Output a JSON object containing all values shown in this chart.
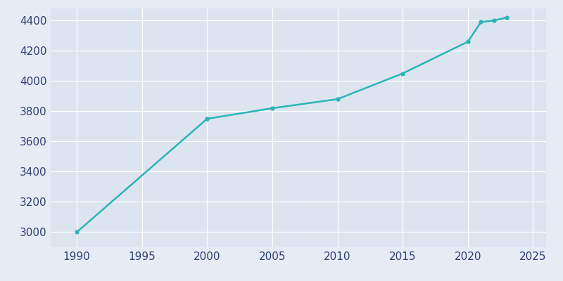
{
  "years": [
    1990,
    2000,
    2005,
    2010,
    2015,
    2020,
    2021,
    2022,
    2023
  ],
  "population": [
    3000,
    3750,
    3820,
    3880,
    4050,
    4260,
    4390,
    4400,
    4420
  ],
  "line_color": "#2ab5b5",
  "marker": "o",
  "marker_size": 3.5,
  "line_width": 1.8,
  "bg_color": "#e6ecf5",
  "axes_bg_color": "#dce4f0",
  "grid_color": "#ffffff",
  "tick_color": "#2e3f6e",
  "xlim": [
    1988,
    2026
  ],
  "ylim": [
    2900,
    4480
  ],
  "xticks": [
    1990,
    1995,
    2000,
    2005,
    2010,
    2015,
    2020,
    2025
  ],
  "yticks": [
    3000,
    3200,
    3400,
    3600,
    3800,
    4000,
    4200,
    4400
  ],
  "tick_fontsize": 11,
  "spine_visible": false
}
